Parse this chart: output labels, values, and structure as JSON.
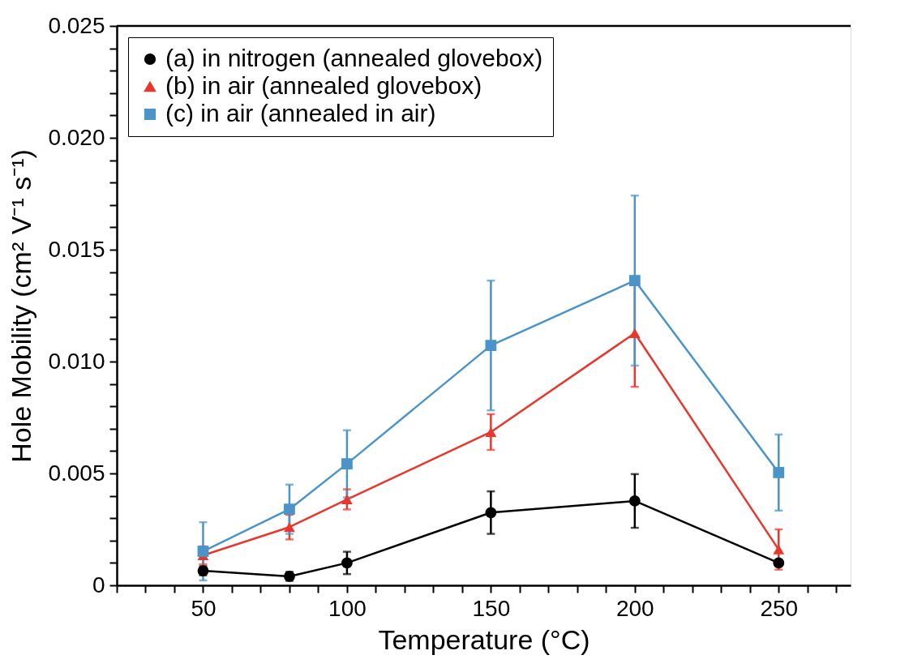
{
  "chart_data": {
    "type": "line",
    "xlabel": "Temperature (°C)",
    "ylabel": "Hole Mobility (cm² V⁻¹ s⁻¹)",
    "x": [
      50,
      80,
      100,
      150,
      200,
      250
    ],
    "xlim": [
      20,
      275
    ],
    "xticks": [
      {
        "value": 20,
        "label": null
      },
      {
        "value": 30,
        "label": null
      },
      {
        "value": 40,
        "label": null
      },
      50,
      {
        "value": 60,
        "label": null
      },
      {
        "value": 70,
        "label": null
      },
      {
        "value": 80,
        "label": null
      },
      {
        "value": 90,
        "label": null
      },
      100,
      {
        "value": 110,
        "label": null
      },
      {
        "value": 120,
        "label": null
      },
      {
        "value": 130,
        "label": null
      },
      {
        "value": 140,
        "label": null
      },
      150,
      {
        "value": 160,
        "label": null
      },
      {
        "value": 170,
        "label": null
      },
      {
        "value": 180,
        "label": null
      },
      {
        "value": 190,
        "label": null
      },
      200,
      {
        "value": 210,
        "label": null
      },
      {
        "value": 220,
        "label": null
      },
      {
        "value": 230,
        "label": null
      },
      {
        "value": 240,
        "label": null
      },
      250,
      {
        "value": 260,
        "label": null
      },
      {
        "value": 270,
        "label": null
      }
    ],
    "ylim": [
      0,
      0.025
    ],
    "yticks": [
      0,
      {
        "value": 0.001,
        "label": null
      },
      {
        "value": 0.002,
        "label": null
      },
      {
        "value": 0.003,
        "label": null
      },
      {
        "value": 0.004,
        "label": null
      },
      0.005,
      {
        "value": 0.006,
        "label": null
      },
      {
        "value": 0.007,
        "label": null
      },
      {
        "value": 0.008,
        "label": null
      },
      {
        "value": 0.009,
        "label": null
      },
      {
        "value": 0.01,
        "label": "0.010"
      },
      {
        "value": 0.011,
        "label": null
      },
      {
        "value": 0.012,
        "label": null
      },
      {
        "value": 0.013,
        "label": null
      },
      {
        "value": 0.014,
        "label": null
      },
      0.015,
      {
        "value": 0.016,
        "label": null
      },
      {
        "value": 0.017,
        "label": null
      },
      {
        "value": 0.018,
        "label": null
      },
      {
        "value": 0.019,
        "label": null
      },
      {
        "value": 0.02,
        "label": "0.020"
      },
      {
        "value": 0.021,
        "label": null
      },
      {
        "value": 0.022,
        "label": null
      },
      {
        "value": 0.023,
        "label": null
      },
      {
        "value": 0.024,
        "label": null
      },
      0.025
    ],
    "grid": false,
    "legend": "top left",
    "line_style": "solid",
    "series": [
      {
        "name": "(a) in nitrogen (annealed glovebox)",
        "color": "#000000",
        "marker": "circle",
        "values": [
          0.00065,
          0.0004,
          0.001,
          0.00325,
          0.00377,
          0.001
        ],
        "errors": [
          0.0002,
          0.0002,
          0.0005,
          0.00095,
          0.0012,
          0.0001
        ]
      },
      {
        "name": "(b) in air (annealed glovebox)",
        "color": "#e8372c",
        "marker": "triangle",
        "values": [
          0.00134,
          0.0026,
          0.00384,
          0.00685,
          0.01127,
          0.0016
        ],
        "errors": [
          0.0004,
          0.00055,
          0.00045,
          0.0008,
          0.0024,
          0.0009
        ]
      },
      {
        "name": "(c) in air (annealed in air)",
        "color": "#4a94c9",
        "marker": "square",
        "values": [
          0.00152,
          0.0034,
          0.00543,
          0.01072,
          0.01362,
          0.00504
        ],
        "errors": [
          0.0013,
          0.0011,
          0.0015,
          0.0029,
          0.0038,
          0.0017
        ]
      }
    ]
  }
}
